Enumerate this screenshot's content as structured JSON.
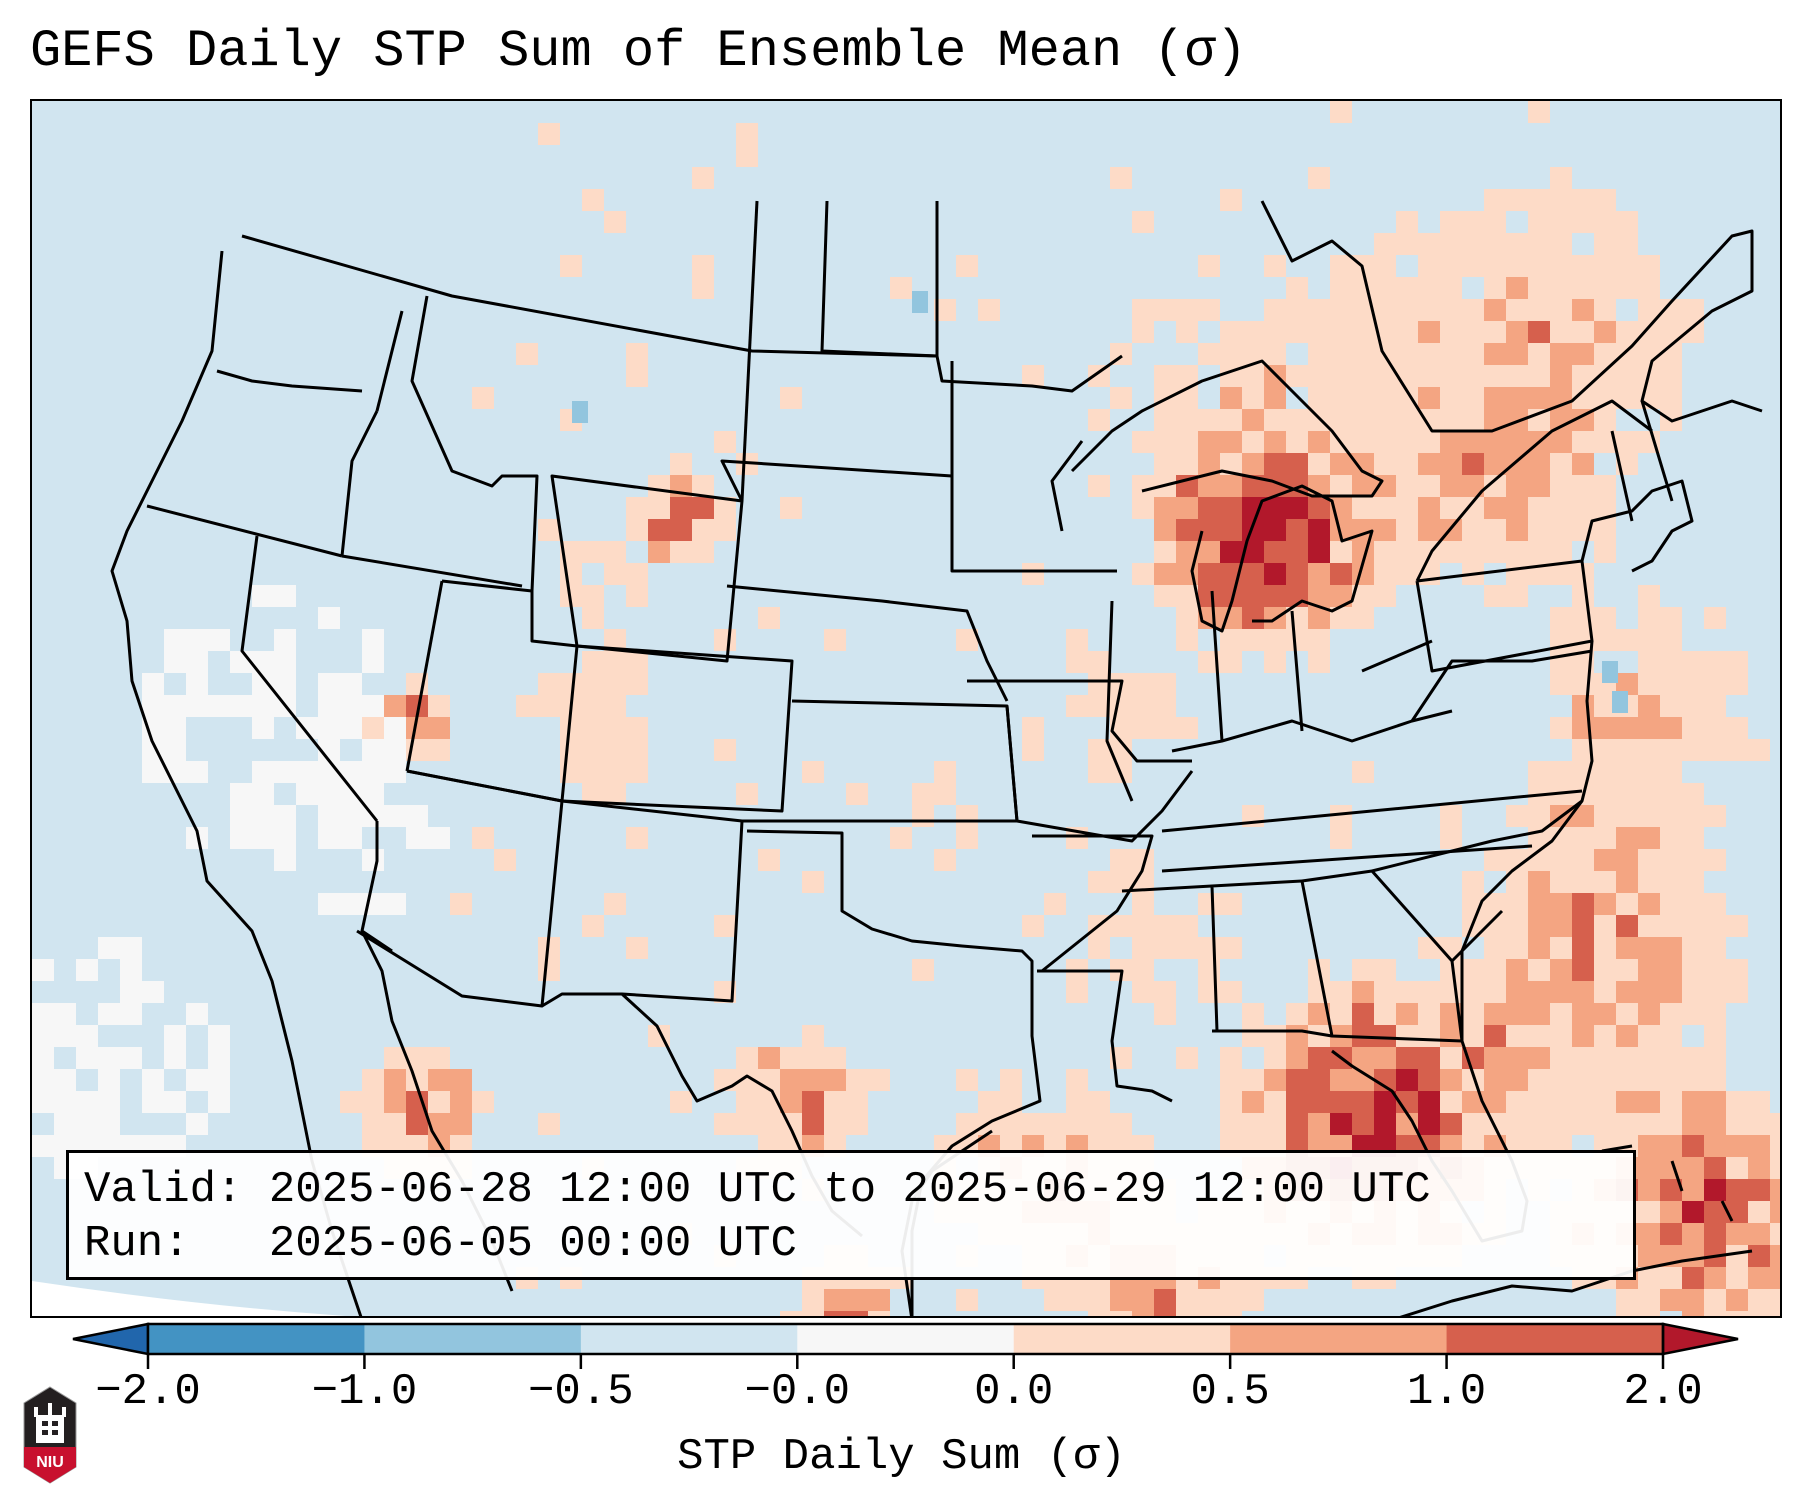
{
  "title": "GEFS Daily STP Sum of Ensemble Mean (σ)",
  "info_box": {
    "valid_label": "Valid:",
    "valid_value": "2025-06-28 12:00 UTC to 2025-06-29 12:00 UTC",
    "run_label": "Run:  ",
    "run_value": "2025-06-05 00:00 UTC"
  },
  "colorbar": {
    "label": "STP Daily Sum (σ)",
    "ticks": [
      "−2.0",
      "−1.0",
      "−0.5",
      "−0.0",
      "0.0",
      "0.5",
      "1.0",
      "2.0"
    ],
    "bins": [
      {
        "range": "< -2.0",
        "color": "#2166ac"
      },
      {
        "range": "-2.0 to -1.0",
        "color": "#4393c3"
      },
      {
        "range": "-1.0 to -0.5",
        "color": "#92c5de"
      },
      {
        "range": "-0.5 to -0.0",
        "color": "#d1e5f0"
      },
      {
        "range": "-0.0 to 0.0",
        "color": "#f7f7f7"
      },
      {
        "range": "0.0 to 0.5",
        "color": "#fddbc7"
      },
      {
        "range": "0.5 to 1.0",
        "color": "#f4a582"
      },
      {
        "range": "1.0 to 2.0",
        "color": "#d6604d"
      },
      {
        "range": "> 2.0",
        "color": "#b2182b"
      }
    ],
    "extend": "both"
  },
  "logo": {
    "text": "NIU"
  },
  "chart_data": {
    "type": "heatmap",
    "title": "GEFS Daily STP Sum of Ensemble Mean (σ)",
    "variable": "STP Daily Sum (σ)",
    "region": "Continental United States",
    "levels": [
      -2.0,
      -1.0,
      -0.5,
      -0.0,
      0.0,
      0.5,
      1.0,
      2.0
    ],
    "valid_period": "2025-06-28 12:00 UTC to 2025-06-29 12:00 UTC",
    "run": "2025-06-05 00:00 UTC",
    "highlights": [
      {
        "area": "Lower Michigan / Lake Michigan",
        "category": "0.5 to >2.0"
      },
      {
        "area": "Northeastern Gulf of Mexico / Florida Big Bend",
        "category": "> 2.0"
      },
      {
        "area": "Western Atlantic off Southeast coast",
        "category": "1.0 to >2.0"
      },
      {
        "area": "Eastern Wyoming",
        "category": "> 2.0"
      },
      {
        "area": "Northern Utah / Nevada border",
        "category": "1.0 to >2.0"
      },
      {
        "area": "Central Texas",
        "category": "> 2.0"
      },
      {
        "area": "Gulf of California / Sonora",
        "category": "> 2.0"
      },
      {
        "area": "Southern California / Pacific offshore",
        "category": "-0.0 to 0.0"
      }
    ]
  }
}
